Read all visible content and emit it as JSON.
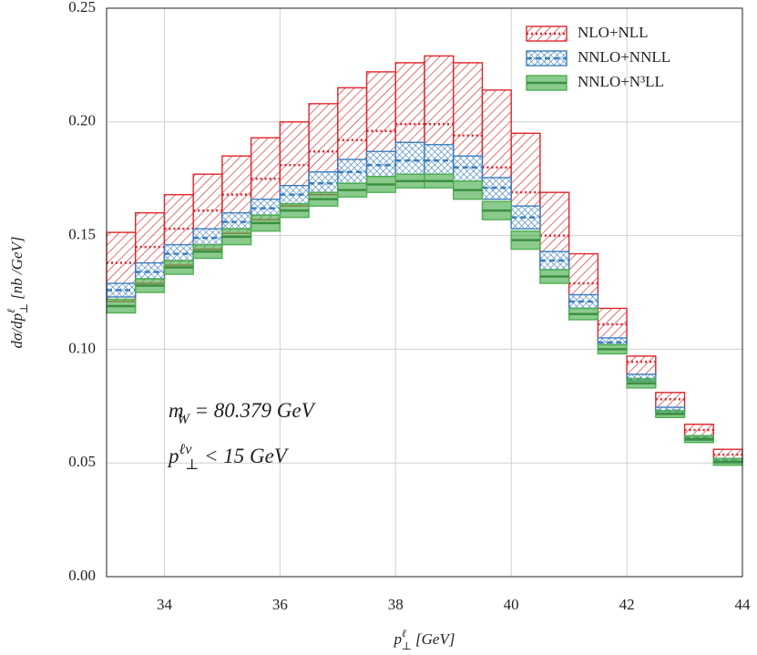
{
  "chart_data": {
    "type": "histogram",
    "bins": [
      33,
      33.5,
      34,
      34.5,
      35,
      35.5,
      36,
      36.5,
      37,
      37.5,
      38,
      38.5,
      39,
      39.5,
      40,
      40.5,
      41,
      41.5,
      42,
      42.5,
      43,
      43.5,
      44
    ],
    "series": [
      {
        "name": "NLO+NLL",
        "color": "#e0242b",
        "fill": "hatch",
        "dash": "dotted",
        "upper": [
          0.1514,
          0.16,
          0.168,
          0.177,
          0.185,
          0.193,
          0.2,
          0.208,
          0.215,
          0.222,
          0.226,
          0.229,
          0.226,
          0.214,
          0.195,
          0.169,
          0.142,
          0.118,
          0.097,
          0.081,
          0.067,
          0.056
        ],
        "values": [
          0.138,
          0.145,
          0.153,
          0.161,
          0.168,
          0.175,
          0.181,
          0.187,
          0.192,
          0.196,
          0.199,
          0.199,
          0.194,
          0.18,
          0.169,
          0.15,
          0.129,
          0.111,
          0.0945,
          0.078,
          0.0645,
          0.0537
        ],
        "lower": [
          0.121,
          0.129,
          0.137,
          0.144,
          0.151,
          0.157,
          0.163,
          0.168,
          0.173,
          0.176,
          0.178,
          0.178,
          0.175,
          0.167,
          0.154,
          0.136,
          0.119,
          0.103,
          0.087,
          0.073,
          0.062,
          0.052
        ]
      },
      {
        "name": "NNLO+NNLL",
        "color": "#3b7dbd",
        "fill": "crosshatch",
        "dash": "dashed",
        "upper": [
          0.129,
          0.138,
          0.146,
          0.153,
          0.16,
          0.166,
          0.172,
          0.178,
          0.1835,
          0.187,
          0.191,
          0.19,
          0.185,
          0.1755,
          0.163,
          0.143,
          0.124,
          0.105,
          0.089,
          0.0745,
          0.062,
          0.052
        ],
        "values": [
          0.126,
          0.134,
          0.142,
          0.149,
          0.156,
          0.162,
          0.168,
          0.173,
          0.178,
          0.181,
          0.183,
          0.183,
          0.18,
          0.171,
          0.158,
          0.139,
          0.121,
          0.103,
          0.087,
          0.073,
          0.061,
          0.051
        ],
        "lower": [
          0.123,
          0.131,
          0.139,
          0.146,
          0.153,
          0.159,
          0.164,
          0.169,
          0.173,
          0.176,
          0.177,
          0.177,
          0.174,
          0.166,
          0.153,
          0.135,
          0.118,
          0.102,
          0.086,
          0.072,
          0.06,
          0.05
        ]
      },
      {
        "name": "NNLO+N³LL",
        "color": "#4caf50",
        "fill": "solid",
        "dash": "solid",
        "upper": [
          0.122,
          0.131,
          0.139,
          0.146,
          0.153,
          0.159,
          0.164,
          0.169,
          0.173,
          0.176,
          0.177,
          0.177,
          0.174,
          0.165,
          0.152,
          0.135,
          0.118,
          0.102,
          0.087,
          0.073,
          0.062,
          0.052
        ],
        "values": [
          0.119,
          0.128,
          0.136,
          0.143,
          0.1495,
          0.1555,
          0.161,
          0.166,
          0.17,
          0.1725,
          0.174,
          0.174,
          0.17,
          0.161,
          0.148,
          0.132,
          0.1155,
          0.1,
          0.085,
          0.0715,
          0.0605,
          0.0505
        ],
        "lower": [
          0.116,
          0.125,
          0.133,
          0.14,
          0.146,
          0.152,
          0.158,
          0.163,
          0.167,
          0.169,
          0.171,
          0.171,
          0.166,
          0.157,
          0.144,
          0.129,
          0.113,
          0.098,
          0.083,
          0.07,
          0.059,
          0.049
        ]
      }
    ],
    "x_label": [
      {
        "text": "p"
      },
      {
        "text": "ℓ",
        "script": "sup"
      },
      {
        "text": "⊥",
        "script": "sub"
      },
      {
        "text": "  [GeV]"
      }
    ],
    "y_label": [
      {
        "text": "dσ/dp"
      },
      {
        "text": "ℓ",
        "script": "sup"
      },
      {
        "text": "⊥",
        "script": "sub"
      },
      {
        "text": " [nb /GeV]"
      }
    ],
    "annotations": [
      [
        {
          "text": "m"
        },
        {
          "text": "W",
          "script": "sub"
        },
        {
          "text": " = 80.379 GeV"
        }
      ],
      [
        {
          "text": "p"
        },
        {
          "text": "ℓν",
          "script": "sup"
        },
        {
          "text": "⊥",
          "script": "sub"
        },
        {
          "text": " < 15 GeV"
        }
      ]
    ],
    "xlim": [
      33,
      44
    ],
    "ylim": [
      0,
      0.25
    ],
    "xticks": [
      34,
      36,
      38,
      40,
      42,
      44
    ],
    "yticks": [
      {
        "value": 0,
        "label": "0.00"
      },
      {
        "value": 0.05,
        "label": "0.05"
      },
      {
        "value": 0.1,
        "label": "0.10"
      },
      {
        "value": 0.15,
        "label": "0.15"
      },
      {
        "value": 0.2,
        "label": "0.20"
      },
      {
        "value": 0.25,
        "label": "0.25"
      }
    ],
    "grid": true,
    "legend": "upper right"
  }
}
